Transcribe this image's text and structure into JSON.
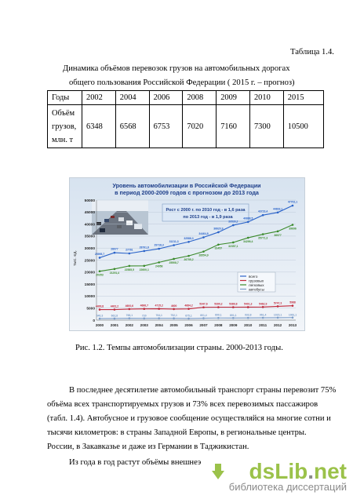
{
  "table_label": "Таблица 1.4.",
  "title_line1": "Динамика объёмов перевозок грузов на автомобильных дорогах",
  "title_line2": "общего пользования Российской Федерации ( 2015 г. – прогноз)",
  "table": {
    "header_label": "Годы",
    "years": [
      "2002",
      "2004",
      "2006",
      "2008",
      "2009",
      "2010",
      "2015"
    ],
    "row_label_lines": [
      "Объём",
      "грузов,",
      "млн. т"
    ],
    "values": [
      "6348",
      "6568",
      "6753",
      "7020",
      "7160",
      "7300",
      "10500"
    ]
  },
  "figure": {
    "title_line1": "Уровень автомобилизации в Российской Федерации",
    "title_line2": "в период 2000-2009 годов с прогнозом до 2013 года",
    "callout_line1": "Рост с 2000 г. по 2010 год - в 1,6 раза",
    "callout_line2": "по 2013 год - в 1,9 раза",
    "ylabel": "тыс. ед.",
    "yticks": [
      "0",
      "5000",
      "10000",
      "15000",
      "20000",
      "25000",
      "30000",
      "35000",
      "40000",
      "45000",
      "50000"
    ],
    "xticks": [
      "2000",
      "2001",
      "2002",
      "2003",
      "2004",
      "2005",
      "2006",
      "2007",
      "2008",
      "2009",
      "2010",
      "2011",
      "2012",
      "2013"
    ],
    "legend": [
      "всего",
      "грузовых",
      "легковых",
      "автобусы"
    ],
    "colors": {
      "total": "#2a63c9",
      "cars": "#3a8a2a",
      "trucks": "#c0283a",
      "buses": "#7a9cc8",
      "title": "#1e3f8a"
    }
  },
  "chart_data": {
    "type": "line",
    "x": [
      "2000",
      "2001",
      "2002",
      "2003",
      "2004",
      "2005",
      "2006",
      "2007",
      "2008",
      "2009",
      "2010",
      "2011",
      "2012",
      "2013"
    ],
    "ylim": [
      0,
      50000
    ],
    "series": [
      {
        "name": "всего",
        "values": [
          25995.7,
          28077,
          27781,
          28791.8,
          29718.3,
          31211.3,
          32588.3,
          34464.8,
          36620.9,
          39530.2,
          40888.5,
          43723.4,
          44833.1,
          47702.1
        ]
      },
      {
        "name": "легковых",
        "values": [
          20353,
          21291.4,
          22585.5,
          22600.1,
          24058,
          25508.7,
          26755.2,
          28554.9,
          31457.0,
          32357.1,
          34299.4,
          35771.3,
          36977,
          39696
        ]
      },
      {
        "name": "грузовых",
        "values": [
          4400.8,
          4402.2,
          4600.6,
          4666.7,
          4715.2,
          4600.0,
          4684.2,
          5347.6,
          5390.2,
          5389.8,
          5401.3,
          5462.9,
          5747.3,
          5988.0
        ]
      },
      {
        "name": "автобусы",
        "values": [
          640.3,
          662.8,
          768.1,
          730,
          764.1,
          752.1,
          675.1,
          801.4,
          899.1,
          891.1,
          933.8,
          961.4,
          1015.1,
          1061.1
        ]
      }
    ]
  },
  "caption": "Рис. 1.2.  Темпы автомобилизации страны. 2000-2013 годы.",
  "paragraph_lines": [
    "В последнее десятилетие автомобильный транспорт страны перевозит 75%",
    "объёма всех транспортируемых грузов и 73% всех перевозимых пассажиров",
    "(табл. 1.4). Автобусное и грузовое сообщение осуществляйся на многие сотни и",
    "тысячи километров: в страны Западной Европы, в региональные центры.",
    "России, в Закавказье и даже из Германии в Таджикистан.",
    "Из года в год растут объёмы внешнеэ"
  ],
  "watermark": {
    "logo_main": "dsLib",
    "logo_dot": ".",
    "logo_tld": "net",
    "subtitle": "библиотека диссертаций"
  }
}
